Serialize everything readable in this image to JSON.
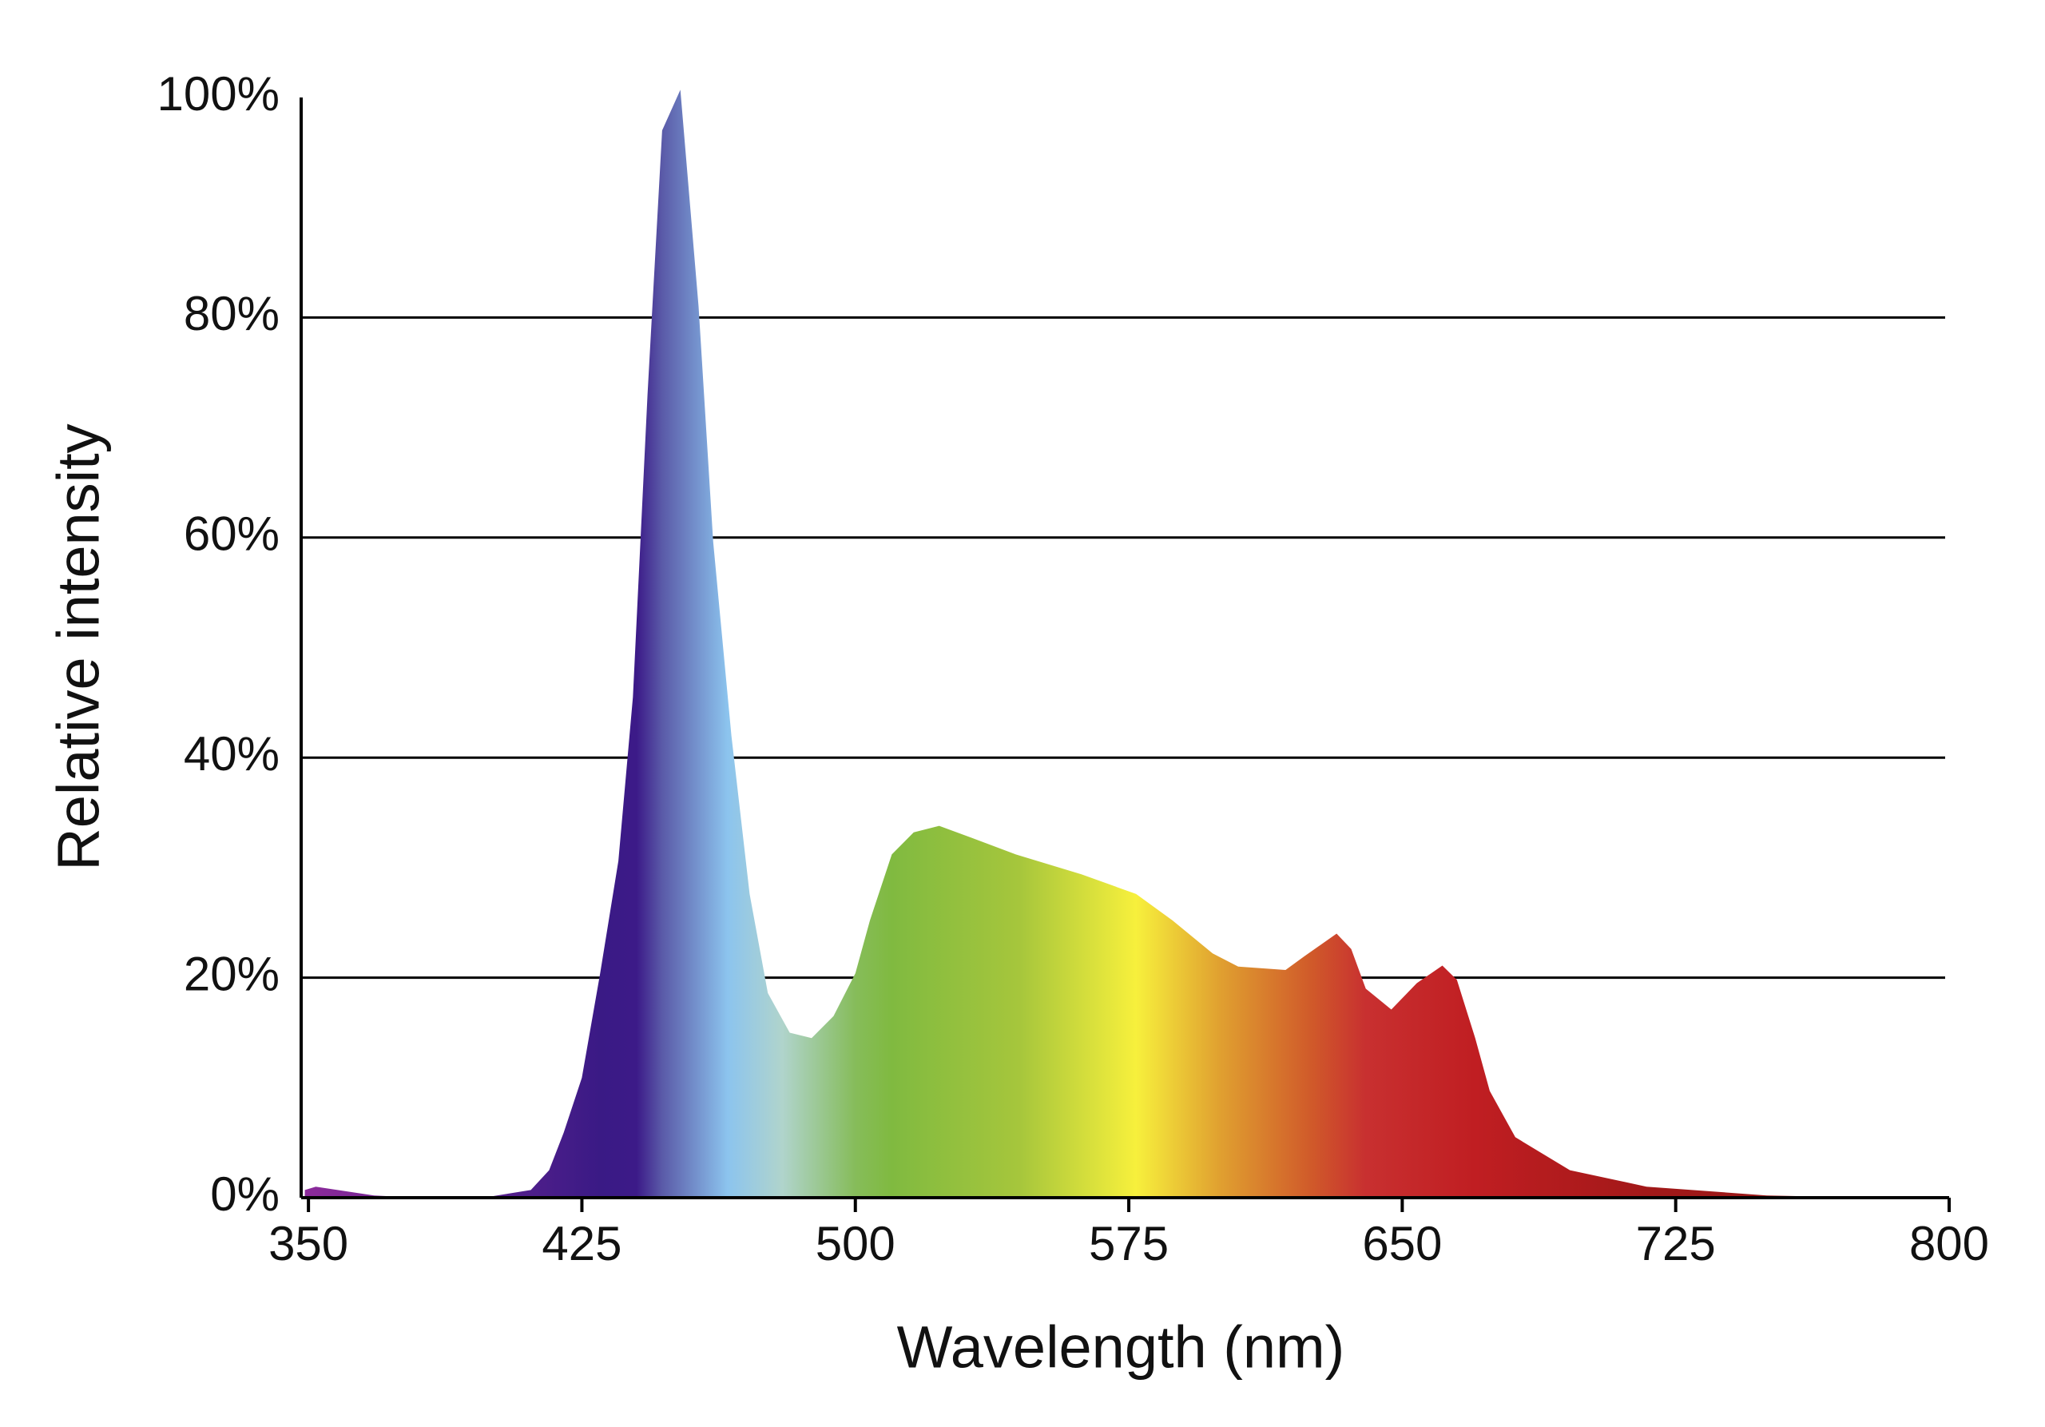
{
  "chart_data": {
    "type": "area",
    "x_label": "Wavelength (nm)",
    "y_label": "Relative intensity",
    "x": [
      349,
      352,
      368,
      380,
      398,
      411,
      416,
      420,
      425,
      430,
      435,
      439,
      443,
      447,
      452,
      457,
      461,
      466,
      471,
      476,
      482,
      488,
      494,
      500,
      504,
      510,
      516,
      523,
      532,
      544,
      562,
      577,
      587,
      598,
      605,
      618,
      623,
      632,
      636,
      640,
      647,
      654,
      661,
      665,
      670,
      674,
      681,
      696,
      717,
      750,
      779,
      798
    ],
    "values": [
      0.7,
      1.0,
      0.2,
      0,
      0,
      0.7,
      2.5,
      5.9,
      10.9,
      20.4,
      30.6,
      45.5,
      73,
      97,
      100.7,
      81,
      59.6,
      42,
      27.6,
      18.6,
      15,
      14.5,
      16.5,
      20.4,
      25.2,
      31.2,
      33.2,
      33.8,
      32.7,
      31.2,
      29.4,
      27.6,
      25.2,
      22.2,
      21,
      20.7,
      21.9,
      24,
      22.6,
      19,
      17.1,
      19.5,
      21.1,
      19.8,
      14.5,
      9.7,
      5.5,
      2.5,
      1,
      0.2,
      0,
      0
    ],
    "color_stops": [
      {
        "x": 350,
        "color": "#8b2a9a"
      },
      {
        "x": 430,
        "color": "#3a1a85"
      },
      {
        "x": 440,
        "color": "#3c1a88"
      },
      {
        "x": 447,
        "color": "#5a5aa8"
      },
      {
        "x": 465,
        "color": "#8cc4ee"
      },
      {
        "x": 480,
        "color": "#b0d4cc"
      },
      {
        "x": 500,
        "color": "#86bc5a"
      },
      {
        "x": 510,
        "color": "#80ba40"
      },
      {
        "x": 545,
        "color": "#a6c63c"
      },
      {
        "x": 577,
        "color": "#f7f03c"
      },
      {
        "x": 600,
        "color": "#e0a030"
      },
      {
        "x": 625,
        "color": "#d05a2a"
      },
      {
        "x": 640,
        "color": "#c83030"
      },
      {
        "x": 670,
        "color": "#c01e22"
      },
      {
        "x": 720,
        "color": "#a01818"
      },
      {
        "x": 800,
        "color": "#901818"
      }
    ],
    "xlim": [
      348,
      800
    ],
    "xticks": [
      350,
      425,
      500,
      575,
      650,
      725,
      800
    ],
    "ylim": [
      0,
      100
    ],
    "yticks": [
      {
        "value": 0,
        "label": "0%"
      },
      {
        "value": 20,
        "label": "20%"
      },
      {
        "value": 40,
        "label": "40%"
      },
      {
        "value": 60,
        "label": "60%"
      },
      {
        "value": 80,
        "label": "80%"
      },
      {
        "value": 100,
        "label": "100%"
      }
    ],
    "grid": true
  }
}
